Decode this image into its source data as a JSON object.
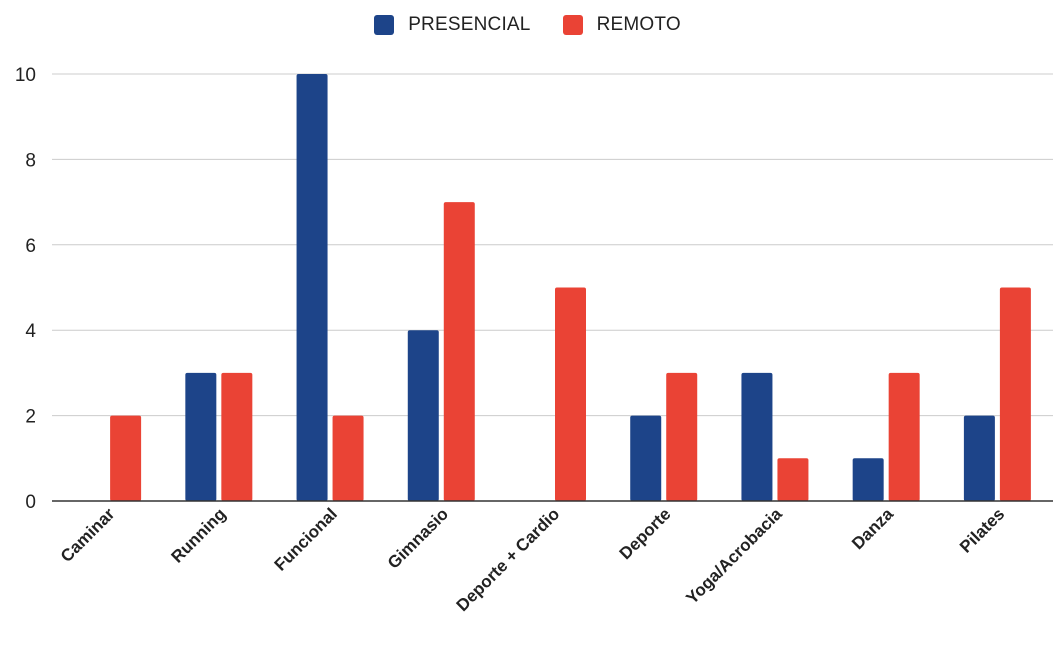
{
  "colors": {
    "presencial": "#1d4489",
    "remoto": "#ea4335",
    "grid": "#cccccc",
    "axis": "#333333",
    "text": "#222222"
  },
  "chart_data": {
    "type": "bar",
    "title": "",
    "xlabel": "",
    "ylabel": "",
    "categories": [
      "Caminar",
      "Running",
      "Funcional",
      "Gimnasio",
      "Deporte + Cardio",
      "Deporte",
      "Yoga/Acrobacia",
      "Danza",
      "Pilates"
    ],
    "series": [
      {
        "name": "PRESENCIAL",
        "values": [
          0,
          3,
          10,
          4,
          0,
          2,
          3,
          1,
          2
        ]
      },
      {
        "name": "REMOTO",
        "values": [
          2,
          3,
          2,
          7,
          5,
          3,
          1,
          3,
          5
        ]
      }
    ],
    "ylim": [
      0,
      10
    ],
    "yticks": [
      "0",
      "2",
      "4",
      "6",
      "8",
      "10"
    ],
    "grid": true,
    "legend_position": "top-center"
  }
}
